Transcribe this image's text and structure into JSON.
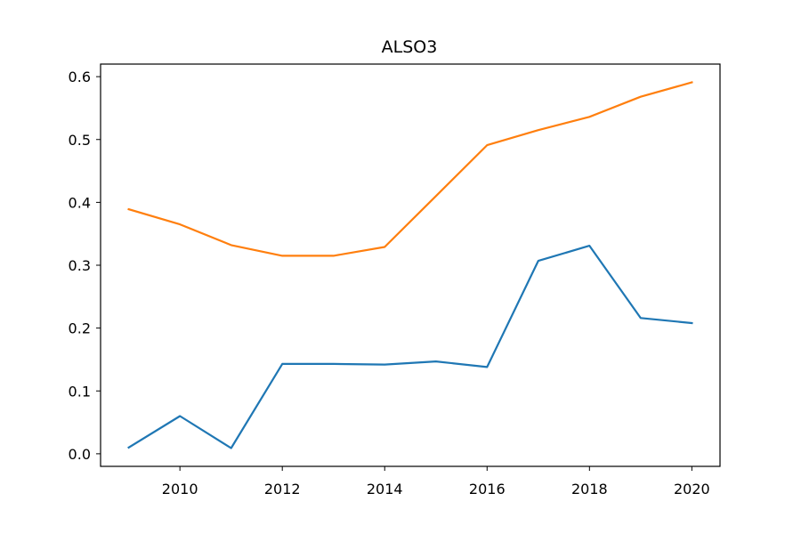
{
  "chart_data": {
    "type": "line",
    "title": "ALSO3",
    "xlabel": "",
    "ylabel": "",
    "x": [
      2009,
      2010,
      2011,
      2012,
      2013,
      2014,
      2015,
      2016,
      2017,
      2018,
      2019,
      2020
    ],
    "xlim": [
      2008.45,
      2020.55
    ],
    "ylim": [
      -0.02,
      0.62
    ],
    "x_ticks": [
      2010,
      2012,
      2014,
      2016,
      2018,
      2020
    ],
    "x_tick_labels": [
      "2010",
      "2012",
      "2014",
      "2016",
      "2018",
      "2020"
    ],
    "y_ticks": [
      0.0,
      0.1,
      0.2,
      0.3,
      0.4,
      0.5,
      0.6
    ],
    "y_tick_labels": [
      "0.0",
      "0.1",
      "0.2",
      "0.3",
      "0.4",
      "0.5",
      "0.6"
    ],
    "grid": false,
    "legend": "none",
    "series": [
      {
        "color": "#1f77b4",
        "values": [
          0.01,
          0.06,
          0.009,
          0.143,
          0.143,
          0.142,
          0.147,
          0.138,
          0.307,
          0.331,
          0.216,
          0.208
        ]
      },
      {
        "color": "#ff7f0e",
        "values": [
          0.389,
          0.365,
          0.332,
          0.315,
          0.315,
          0.329,
          0.41,
          0.491,
          0.515,
          0.536,
          0.568,
          0.591
        ]
      }
    ]
  }
}
